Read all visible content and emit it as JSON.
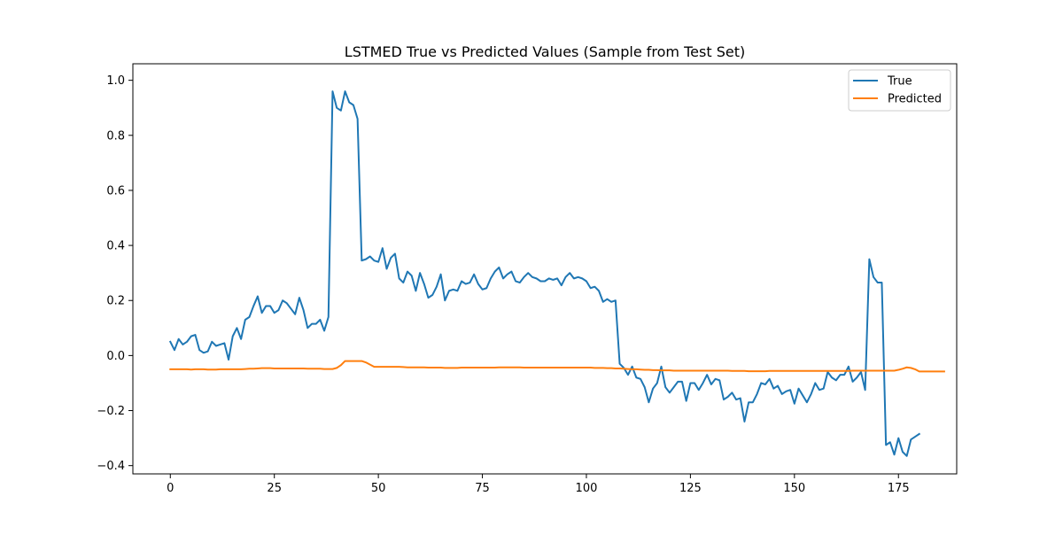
{
  "chart_data": {
    "type": "line",
    "title": "LSTMED True vs Predicted Values (Sample from Test Set)",
    "xlabel": "",
    "ylabel": "",
    "xlim": [
      -9,
      189
    ],
    "ylim": [
      -0.43,
      1.06
    ],
    "xticks": [
      0,
      25,
      50,
      75,
      100,
      125,
      150,
      175
    ],
    "yticks": [
      -0.4,
      -0.2,
      0.0,
      0.2,
      0.4,
      0.6,
      0.8,
      1.0
    ],
    "ytick_labels": [
      "−0.4",
      "−0.2",
      "0.0",
      "0.2",
      "0.4",
      "0.6",
      "0.8",
      "1.0"
    ],
    "grid": false,
    "legend_position": "top-right",
    "series": [
      {
        "name": "True",
        "color": "#1f77b4",
        "values": [
          0.05,
          0.02,
          0.06,
          0.04,
          0.05,
          0.07,
          0.075,
          0.02,
          0.01,
          0.015,
          0.05,
          0.035,
          0.04,
          0.045,
          -0.015,
          0.07,
          0.1,
          0.06,
          0.13,
          0.14,
          0.18,
          0.215,
          0.155,
          0.18,
          0.18,
          0.155,
          0.165,
          0.2,
          0.19,
          0.17,
          0.15,
          0.21,
          0.165,
          0.1,
          0.115,
          0.115,
          0.13,
          0.09,
          0.14,
          0.96,
          0.9,
          0.89,
          0.96,
          0.92,
          0.91,
          0.86,
          0.345,
          0.35,
          0.36,
          0.345,
          0.34,
          0.39,
          0.315,
          0.355,
          0.37,
          0.28,
          0.265,
          0.305,
          0.29,
          0.235,
          0.3,
          0.26,
          0.21,
          0.22,
          0.25,
          0.295,
          0.2,
          0.235,
          0.24,
          0.235,
          0.27,
          0.26,
          0.265,
          0.295,
          0.26,
          0.24,
          0.245,
          0.28,
          0.305,
          0.32,
          0.28,
          0.295,
          0.305,
          0.27,
          0.265,
          0.285,
          0.3,
          0.285,
          0.28,
          0.27,
          0.27,
          0.28,
          0.275,
          0.28,
          0.255,
          0.285,
          0.3,
          0.28,
          0.285,
          0.28,
          0.27,
          0.245,
          0.25,
          0.235,
          0.195,
          0.205,
          0.195,
          0.2,
          -0.03,
          -0.045,
          -0.07,
          -0.04,
          -0.08,
          -0.085,
          -0.115,
          -0.17,
          -0.12,
          -0.1,
          -0.04,
          -0.115,
          -0.135,
          -0.115,
          -0.095,
          -0.095,
          -0.165,
          -0.1,
          -0.1,
          -0.125,
          -0.1,
          -0.07,
          -0.105,
          -0.085,
          -0.09,
          -0.16,
          -0.15,
          -0.135,
          -0.16,
          -0.155,
          -0.24,
          -0.17,
          -0.17,
          -0.14,
          -0.1,
          -0.105,
          -0.085,
          -0.12,
          -0.11,
          -0.14,
          -0.13,
          -0.125,
          -0.175,
          -0.12,
          -0.145,
          -0.17,
          -0.14,
          -0.1,
          -0.125,
          -0.12,
          -0.06,
          -0.08,
          -0.09,
          -0.07,
          -0.07,
          -0.04,
          -0.095,
          -0.08,
          -0.06,
          -0.125,
          0.35,
          0.285,
          0.265,
          0.265,
          -0.325,
          -0.315,
          -0.36,
          -0.3,
          -0.35,
          -0.365,
          -0.305,
          -0.295,
          -0.285
        ]
      },
      {
        "name": "Predicted",
        "color": "#ff7f0e",
        "values": [
          -0.05,
          -0.05,
          -0.05,
          -0.05,
          -0.05,
          -0.051,
          -0.05,
          -0.05,
          -0.05,
          -0.051,
          -0.051,
          -0.051,
          -0.05,
          -0.05,
          -0.05,
          -0.05,
          -0.05,
          -0.05,
          -0.049,
          -0.048,
          -0.048,
          -0.047,
          -0.046,
          -0.046,
          -0.046,
          -0.047,
          -0.047,
          -0.047,
          -0.047,
          -0.047,
          -0.047,
          -0.047,
          -0.047,
          -0.048,
          -0.048,
          -0.048,
          -0.048,
          -0.049,
          -0.049,
          -0.049,
          -0.045,
          -0.035,
          -0.02,
          -0.02,
          -0.02,
          -0.02,
          -0.02,
          -0.025,
          -0.033,
          -0.041,
          -0.041,
          -0.041,
          -0.041,
          -0.041,
          -0.041,
          -0.041,
          -0.042,
          -0.043,
          -0.043,
          -0.043,
          -0.043,
          -0.043,
          -0.044,
          -0.044,
          -0.044,
          -0.044,
          -0.045,
          -0.045,
          -0.045,
          -0.045,
          -0.044,
          -0.044,
          -0.044,
          -0.044,
          -0.044,
          -0.044,
          -0.044,
          -0.044,
          -0.044,
          -0.043,
          -0.043,
          -0.043,
          -0.043,
          -0.043,
          -0.043,
          -0.044,
          -0.044,
          -0.044,
          -0.044,
          -0.044,
          -0.044,
          -0.044,
          -0.044,
          -0.044,
          -0.044,
          -0.044,
          -0.044,
          -0.044,
          -0.044,
          -0.044,
          -0.044,
          -0.044,
          -0.045,
          -0.045,
          -0.045,
          -0.046,
          -0.046,
          -0.047,
          -0.047,
          -0.048,
          -0.049,
          -0.05,
          -0.05,
          -0.051,
          -0.052,
          -0.052,
          -0.053,
          -0.053,
          -0.054,
          -0.054,
          -0.054,
          -0.055,
          -0.055,
          -0.055,
          -0.055,
          -0.055,
          -0.055,
          -0.055,
          -0.055,
          -0.055,
          -0.055,
          -0.055,
          -0.055,
          -0.055,
          -0.055,
          -0.056,
          -0.056,
          -0.056,
          -0.056,
          -0.057,
          -0.057,
          -0.057,
          -0.057,
          -0.057,
          -0.056,
          -0.056,
          -0.056,
          -0.056,
          -0.056,
          -0.056,
          -0.056,
          -0.056,
          -0.056,
          -0.056,
          -0.056,
          -0.056,
          -0.056,
          -0.056,
          -0.056,
          -0.056,
          -0.056,
          -0.056,
          -0.056,
          -0.056,
          -0.055,
          -0.055,
          -0.055,
          -0.055,
          -0.055,
          -0.055,
          -0.055,
          -0.055,
          -0.055,
          -0.055,
          -0.055,
          -0.052,
          -0.048,
          -0.043,
          -0.045,
          -0.05,
          -0.058,
          -0.058,
          -0.058,
          -0.058,
          -0.058,
          -0.058,
          -0.058
        ]
      }
    ]
  }
}
